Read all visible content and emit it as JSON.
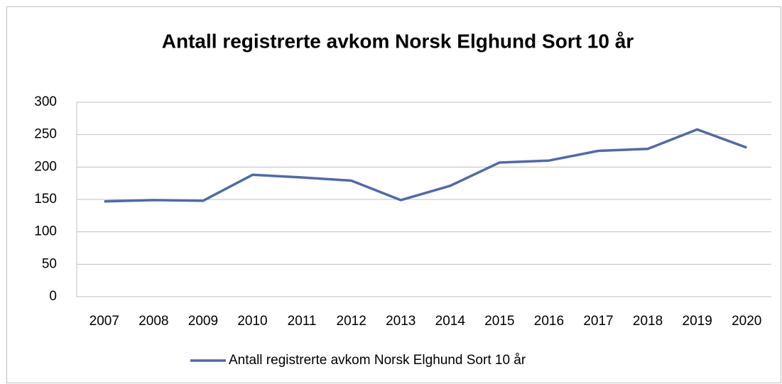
{
  "chart_data": {
    "type": "line",
    "title": "Antall registrerte avkom Norsk Elghund Sort 10 år",
    "categories": [
      "2007",
      "2008",
      "2009",
      "2010",
      "2011",
      "2012",
      "2013",
      "2014",
      "2015",
      "2016",
      "2017",
      "2018",
      "2019",
      "2020"
    ],
    "series": [
      {
        "name": "Antall registrerte avkom Norsk Elghund Sort 10 år",
        "color": "#4f6aa8",
        "values": [
          147,
          149,
          148,
          188,
          184,
          179,
          149,
          171,
          207,
          210,
          225,
          228,
          258,
          230
        ]
      }
    ],
    "ylim": [
      0,
      300
    ],
    "yticks": [
      0,
      50,
      100,
      150,
      200,
      250,
      300
    ],
    "grid": true,
    "legend": "bottom"
  }
}
